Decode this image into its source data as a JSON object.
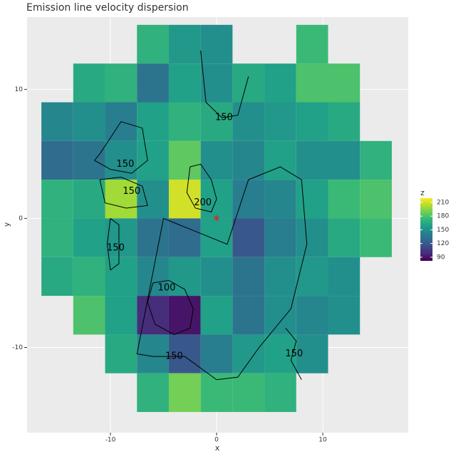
{
  "chart_data": {
    "type": "voronoi-map",
    "title": "Emission line velocity dispersion",
    "x_label": "x",
    "y_label": "y",
    "legend_title": "z",
    "x": [
      -15,
      -12,
      -9,
      -6,
      -3,
      0,
      3,
      6,
      9,
      12,
      15
    ],
    "y": [
      13.5,
      10.5,
      7.5,
      4.5,
      1.5,
      -1.5,
      -4.5,
      -7.5,
      -10.5,
      -13.5
    ],
    "values": [
      [
        null,
        null,
        null,
        170,
        155,
        150,
        null,
        null,
        175,
        null,
        null
      ],
      [
        null,
        165,
        170,
        135,
        160,
        150,
        165,
        160,
        180,
        180,
        null
      ],
      [
        145,
        150,
        140,
        160,
        170,
        165,
        150,
        155,
        160,
        165,
        null
      ],
      [
        130,
        135,
        150,
        160,
        185,
        150,
        145,
        160,
        150,
        150,
        170
      ],
      [
        170,
        165,
        200,
        150,
        210,
        160,
        140,
        145,
        160,
        175,
        180
      ],
      [
        170,
        160,
        155,
        135,
        130,
        160,
        120,
        140,
        150,
        165,
        175
      ],
      [
        165,
        170,
        160,
        145,
        155,
        150,
        135,
        150,
        155,
        150,
        null
      ],
      [
        null,
        180,
        160,
        100,
        90,
        160,
        135,
        150,
        145,
        150,
        null
      ],
      [
        null,
        null,
        165,
        145,
        120,
        140,
        155,
        160,
        150,
        null,
        null
      ],
      [
        null,
        null,
        null,
        170,
        190,
        175,
        175,
        170,
        null,
        null,
        null
      ]
    ],
    "xlim": [
      -17.85,
      18.05
    ],
    "ylim": [
      -16.6,
      15.6
    ],
    "xticks": [
      -10,
      0,
      10
    ],
    "yticks": [
      -10,
      0,
      10
    ],
    "zlim": [
      82,
      219.4
    ],
    "zticks": [
      90,
      120,
      150,
      180,
      210
    ],
    "grid": true,
    "marker": {
      "x": 0,
      "y": 0,
      "color": "#e41a1c"
    },
    "contours": [
      {
        "level": 150,
        "label_x": 0.7,
        "label_y": 7.8,
        "x": [
          -1.5,
          -1,
          0.5,
          2,
          3
        ],
        "y": [
          13,
          9,
          7.8,
          8,
          11
        ]
      },
      {
        "level": 150,
        "label_x": -8.6,
        "label_y": 4.2,
        "x": [
          -11,
          -9,
          -7,
          -6.5,
          -8,
          -10,
          -11.5,
          -11
        ],
        "y": [
          5,
          7.5,
          7,
          4.5,
          3.5,
          3.8,
          4.5,
          5
        ]
      },
      {
        "level": 150,
        "label_x": -8,
        "label_y": 2.1,
        "x": [
          -11,
          -9,
          -7,
          -6.5,
          -8.5,
          -10.5,
          -11
        ],
        "y": [
          3,
          3.2,
          2.5,
          1,
          0.8,
          1.2,
          3
        ]
      },
      {
        "level": 200,
        "label_x": -1.3,
        "label_y": 1.2,
        "x": [
          -2.5,
          -1.5,
          -0.5,
          0,
          -0.5,
          -2,
          -2.8,
          -2.5
        ],
        "y": [
          4,
          4.2,
          3,
          1.5,
          0.5,
          0.8,
          2,
          4
        ]
      },
      {
        "level": 150,
        "label_x": -9.5,
        "label_y": -2.3,
        "x": [
          -10,
          -9.2,
          -9.2,
          -10,
          -10.3,
          -10
        ],
        "y": [
          0,
          -0.5,
          -3.5,
          -4,
          -2,
          0
        ]
      },
      {
        "level": 100,
        "label_x": -4.7,
        "label_y": -5.4,
        "x": [
          -6,
          -4.5,
          -3,
          -2.2,
          -2.5,
          -4,
          -5.8,
          -6.5,
          -6
        ],
        "y": [
          -5,
          -4.8,
          -5.5,
          -7,
          -8.5,
          -9,
          -8.2,
          -6.5,
          -5
        ]
      },
      {
        "level": 150,
        "label_x": -4,
        "label_y": -10.7,
        "x": [
          -7.5,
          -6,
          -3,
          0,
          2,
          4,
          7,
          8.5,
          8,
          6,
          3,
          1,
          -2,
          -5,
          -7.5
        ],
        "y": [
          -10.5,
          -10.7,
          -10.7,
          -12.5,
          -12.3,
          -10,
          -7,
          -2,
          3,
          4,
          3,
          -2,
          -1,
          0,
          -10.5
        ]
      },
      {
        "level": 150,
        "label_x": 7.3,
        "label_y": -10.5,
        "x": [
          6.5,
          7.5,
          7,
          8
        ],
        "y": [
          -8.5,
          -9.5,
          -11,
          -12.5
        ]
      }
    ]
  }
}
